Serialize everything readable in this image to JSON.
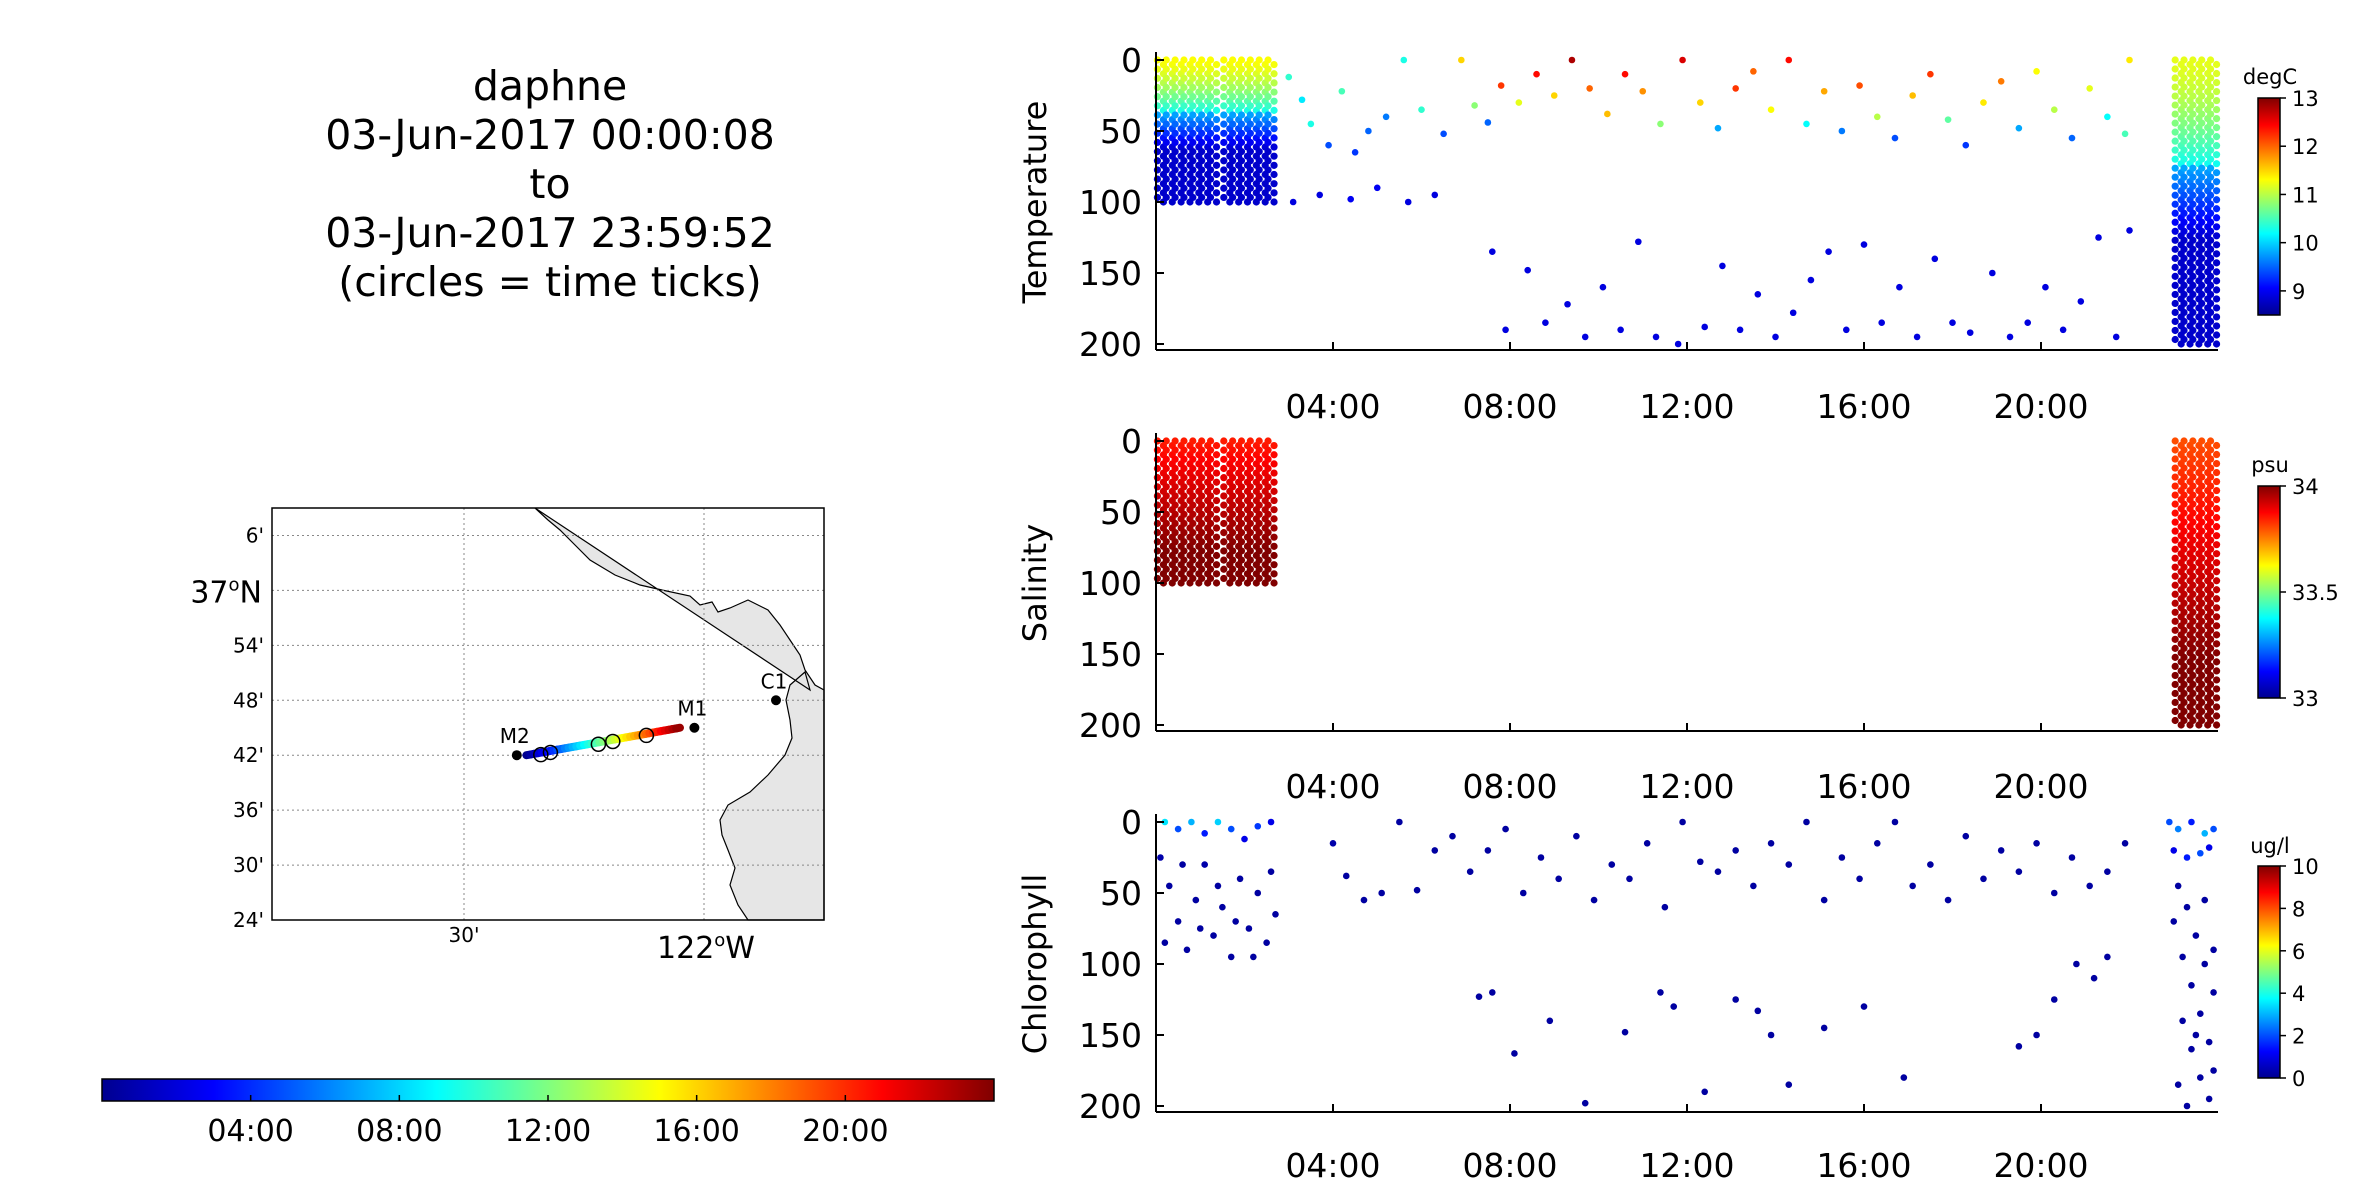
{
  "title": {
    "lines": [
      "daphne",
      "03-Jun-2017 00:00:08",
      "to",
      "03-Jun-2017 23:59:52",
      "(circles = time ticks)"
    ]
  },
  "colors": {
    "jet": [
      "#00008f",
      "#0000ff",
      "#0080ff",
      "#00ffff",
      "#80ff80",
      "#ffff00",
      "#ff8000",
      "#ff0000",
      "#800000"
    ],
    "land": "#e6e6e6",
    "grid": "#888888"
  },
  "map": {
    "lat_ticks": [
      "6'",
      "37°N",
      "54'",
      "48'",
      "42'",
      "36'",
      "30'",
      "24'"
    ],
    "lat_values": [
      37.1,
      37.0,
      36.9,
      36.8,
      36.7,
      36.6,
      36.5,
      36.4
    ],
    "lon_ticks": [
      "30'",
      "122°W"
    ],
    "lon_values": [
      -122.5,
      -122.0
    ],
    "lon_range": [
      -122.9,
      -121.75
    ],
    "lat_range": [
      36.4,
      37.15
    ],
    "stations": [
      {
        "name": "M1",
        "lon": -122.02,
        "lat": 36.75
      },
      {
        "name": "M2",
        "lon": -122.39,
        "lat": 36.7
      },
      {
        "name": "C1",
        "lon": -121.85,
        "lat": 36.8
      }
    ],
    "time_tick_circles": [
      {
        "lon": -122.34,
        "lat": 36.701
      },
      {
        "lon": -122.32,
        "lat": 36.705
      },
      {
        "lon": -122.22,
        "lat": 36.72
      },
      {
        "lon": -122.19,
        "lat": 36.725
      },
      {
        "lon": -122.12,
        "lat": 36.736
      }
    ]
  },
  "time_colorbar": {
    "ticks": [
      "04:00",
      "08:00",
      "12:00",
      "16:00",
      "20:00"
    ],
    "tick_hours": [
      4,
      8,
      12,
      16,
      20
    ],
    "range_hours": [
      0,
      24
    ]
  },
  "chart_data": [
    {
      "type": "scatter",
      "ylabel": "Temperature",
      "unit": "degC",
      "y_ticks": [
        "0",
        "50",
        "100",
        "150",
        "200"
      ],
      "ylim": [
        200,
        0
      ],
      "x_ticks": [
        "04:00",
        "08:00",
        "12:00",
        "16:00",
        "20:00"
      ],
      "xlim_hours": [
        0,
        24
      ],
      "colorbar_ticks": [
        "13",
        "12",
        "11",
        "10",
        "9"
      ],
      "clim": [
        8.5,
        13
      ],
      "series": [
        {
          "x": [
            0.1,
            0.3,
            0.5,
            0.7,
            0.9,
            1.1,
            1.3,
            1.6,
            1.8,
            2.0,
            2.2,
            2.4,
            2.6
          ],
          "y_top": 0,
          "y_bottom": 100,
          "color_top": 11.3,
          "color_bottom": 8.8
        },
        {
          "x": [
            23.1,
            23.3,
            23.5,
            23.7,
            23.9
          ],
          "y_top": 0,
          "y_bottom": 200,
          "color_top": 11.2,
          "color_bottom": 8.8
        }
      ],
      "points": [
        [
          3.0,
          12,
          10.4
        ],
        [
          3.3,
          28,
          10.1
        ],
        [
          3.5,
          45,
          10.3
        ],
        [
          3.9,
          60,
          9.4
        ],
        [
          4.2,
          22,
          10.5
        ],
        [
          4.5,
          65,
          9.3
        ],
        [
          4.8,
          50,
          9.5
        ],
        [
          5.2,
          40,
          9.6
        ],
        [
          5.6,
          0,
          10.3
        ],
        [
          6.0,
          35,
          10.4
        ],
        [
          6.5,
          52,
          9.4
        ],
        [
          6.9,
          0,
          11.5
        ],
        [
          7.2,
          32,
          10.8
        ],
        [
          7.5,
          44,
          9.5
        ],
        [
          7.8,
          18,
          12.2
        ],
        [
          8.2,
          30,
          11.2
        ],
        [
          8.6,
          10,
          12.4
        ],
        [
          9.0,
          25,
          11.5
        ],
        [
          9.4,
          0,
          12.8
        ],
        [
          9.8,
          20,
          12.0
        ],
        [
          10.2,
          38,
          11.6
        ],
        [
          10.6,
          10,
          12.4
        ],
        [
          11.0,
          22,
          11.8
        ],
        [
          11.4,
          45,
          10.8
        ],
        [
          11.9,
          0,
          12.6
        ],
        [
          12.3,
          30,
          11.5
        ],
        [
          12.7,
          48,
          9.8
        ],
        [
          13.1,
          20,
          12.2
        ],
        [
          13.5,
          8,
          12.0
        ],
        [
          13.9,
          35,
          11.3
        ],
        [
          14.3,
          0,
          12.4
        ],
        [
          14.7,
          45,
          10.2
        ],
        [
          15.1,
          22,
          11.7
        ],
        [
          15.5,
          50,
          9.6
        ],
        [
          15.9,
          18,
          12.1
        ],
        [
          16.3,
          40,
          11.0
        ],
        [
          16.7,
          55,
          9.4
        ],
        [
          17.1,
          25,
          11.6
        ],
        [
          17.5,
          10,
          12.2
        ],
        [
          17.9,
          42,
          10.6
        ],
        [
          18.3,
          60,
          9.3
        ],
        [
          18.7,
          30,
          11.4
        ],
        [
          19.1,
          15,
          11.9
        ],
        [
          19.5,
          48,
          9.8
        ],
        [
          19.9,
          8,
          11.3
        ],
        [
          20.3,
          35,
          11.0
        ],
        [
          20.7,
          55,
          9.5
        ],
        [
          21.1,
          20,
          11.2
        ],
        [
          21.5,
          40,
          10.2
        ],
        [
          21.9,
          52,
          10.5
        ],
        [
          22.0,
          0,
          11.4
        ],
        [
          3.1,
          100,
          8.9
        ],
        [
          3.7,
          95,
          8.9
        ],
        [
          4.4,
          98,
          9.0
        ],
        [
          5.0,
          90,
          9.0
        ],
        [
          5.7,
          100,
          8.9
        ],
        [
          6.3,
          95,
          8.9
        ],
        [
          7.6,
          135,
          8.9
        ],
        [
          7.9,
          190,
          8.9
        ],
        [
          8.4,
          148,
          8.9
        ],
        [
          8.8,
          185,
          8.9
        ],
        [
          9.3,
          172,
          8.9
        ],
        [
          9.7,
          195,
          8.9
        ],
        [
          10.1,
          160,
          8.9
        ],
        [
          10.5,
          190,
          8.9
        ],
        [
          10.9,
          128,
          8.9
        ],
        [
          11.3,
          195,
          8.9
        ],
        [
          11.8,
          200,
          8.9
        ],
        [
          12.4,
          188,
          8.9
        ],
        [
          12.8,
          145,
          8.9
        ],
        [
          13.2,
          190,
          8.9
        ],
        [
          13.6,
          165,
          8.9
        ],
        [
          14.0,
          195,
          8.9
        ],
        [
          14.4,
          178,
          8.9
        ],
        [
          14.8,
          155,
          8.9
        ],
        [
          15.2,
          135,
          8.9
        ],
        [
          15.6,
          190,
          8.9
        ],
        [
          16.0,
          130,
          8.9
        ],
        [
          16.4,
          185,
          8.9
        ],
        [
          16.8,
          160,
          8.9
        ],
        [
          17.2,
          195,
          8.9
        ],
        [
          17.6,
          140,
          8.9
        ],
        [
          18.0,
          185,
          8.9
        ],
        [
          18.4,
          192,
          8.9
        ],
        [
          18.9,
          150,
          8.9
        ],
        [
          19.3,
          195,
          8.9
        ],
        [
          19.7,
          185,
          8.9
        ],
        [
          20.1,
          160,
          8.9
        ],
        [
          20.5,
          190,
          8.9
        ],
        [
          20.9,
          170,
          8.9
        ],
        [
          21.3,
          125,
          8.9
        ],
        [
          21.7,
          195,
          8.9
        ],
        [
          22.0,
          120,
          8.9
        ]
      ]
    },
    {
      "type": "scatter",
      "ylabel": "Salinity",
      "unit": "psu",
      "y_ticks": [
        "0",
        "50",
        "100",
        "150",
        "200"
      ],
      "ylim": [
        200,
        0
      ],
      "x_ticks": [
        "04:00",
        "08:00",
        "12:00",
        "16:00",
        "20:00"
      ],
      "xlim_hours": [
        0,
        24
      ],
      "colorbar_ticks": [
        "34",
        "33.5",
        "33"
      ],
      "clim": [
        33,
        34
      ],
      "series": [
        {
          "x": [
            0.1,
            0.3,
            0.5,
            0.7,
            0.9,
            1.1,
            1.3,
            1.6,
            1.8,
            2.0,
            2.2,
            2.4,
            2.6
          ],
          "y_top": 0,
          "y_bottom": 100,
          "color_top": 33.85,
          "color_bottom": 34.0
        },
        {
          "x": [
            23.1,
            23.3,
            23.5,
            23.7,
            23.9
          ],
          "y_top": 0,
          "y_bottom": 200,
          "color_top": 33.8,
          "color_bottom": 34.0
        }
      ],
      "points": []
    },
    {
      "type": "scatter",
      "ylabel": "Chlorophyll",
      "unit": "ug/l",
      "y_ticks": [
        "0",
        "50",
        "100",
        "150",
        "200"
      ],
      "ylim": [
        200,
        0
      ],
      "x_ticks": [
        "04:00",
        "08:00",
        "12:00",
        "16:00",
        "20:00"
      ],
      "xlim_hours": [
        0,
        24
      ],
      "colorbar_ticks": [
        "10",
        "8",
        "6",
        "4",
        "2",
        "0"
      ],
      "clim": [
        0,
        10
      ],
      "series": [],
      "points": [
        [
          0.2,
          0,
          3.5
        ],
        [
          0.5,
          5,
          2.0
        ],
        [
          0.8,
          0,
          3.0
        ],
        [
          1.1,
          8,
          1.5
        ],
        [
          1.4,
          0,
          3.3
        ],
        [
          1.7,
          5,
          2.0
        ],
        [
          2.0,
          12,
          1.0
        ],
        [
          2.3,
          3,
          1.8
        ],
        [
          2.6,
          0,
          1.0
        ],
        [
          0.1,
          25,
          0.3
        ],
        [
          0.3,
          45,
          0.2
        ],
        [
          0.5,
          70,
          0.2
        ],
        [
          0.7,
          90,
          0.2
        ],
        [
          0.9,
          55,
          0.2
        ],
        [
          1.1,
          30,
          0.3
        ],
        [
          1.3,
          80,
          0.2
        ],
        [
          1.5,
          60,
          0.2
        ],
        [
          1.7,
          95,
          0.2
        ],
        [
          1.9,
          40,
          0.2
        ],
        [
          2.1,
          75,
          0.2
        ],
        [
          2.3,
          50,
          0.2
        ],
        [
          2.5,
          85,
          0.2
        ],
        [
          2.7,
          65,
          0.2
        ],
        [
          0.2,
          85,
          0.2
        ],
        [
          0.6,
          30,
          0.2
        ],
        [
          1.0,
          75,
          0.2
        ],
        [
          1.4,
          45,
          0.2
        ],
        [
          1.8,
          70,
          0.2
        ],
        [
          2.2,
          95,
          0.2
        ],
        [
          2.6,
          35,
          0.2
        ],
        [
          4.0,
          15,
          0.3
        ],
        [
          4.3,
          38,
          0.2
        ],
        [
          4.7,
          55,
          0.2
        ],
        [
          5.1,
          50,
          0.2
        ],
        [
          5.5,
          0,
          0.2
        ],
        [
          5.9,
          48,
          0.2
        ],
        [
          6.3,
          20,
          0.2
        ],
        [
          6.7,
          10,
          0.2
        ],
        [
          7.1,
          35,
          0.2
        ],
        [
          7.5,
          20,
          0.2
        ],
        [
          7.9,
          5,
          0.2
        ],
        [
          8.3,
          50,
          0.2
        ],
        [
          8.7,
          25,
          0.2
        ],
        [
          9.1,
          40,
          0.2
        ],
        [
          9.5,
          10,
          0.2
        ],
        [
          9.9,
          55,
          0.2
        ],
        [
          10.3,
          30,
          0.2
        ],
        [
          10.7,
          40,
          0.2
        ],
        [
          11.1,
          15,
          0.2
        ],
        [
          11.5,
          60,
          0.2
        ],
        [
          11.9,
          0,
          0.2
        ],
        [
          12.3,
          28,
          0.2
        ],
        [
          12.7,
          35,
          0.2
        ],
        [
          13.1,
          20,
          0.2
        ],
        [
          13.5,
          45,
          0.2
        ],
        [
          13.9,
          15,
          0.2
        ],
        [
          14.3,
          30,
          0.2
        ],
        [
          14.7,
          0,
          0.2
        ],
        [
          15.1,
          55,
          0.2
        ],
        [
          15.5,
          25,
          0.2
        ],
        [
          15.9,
          40,
          0.2
        ],
        [
          16.3,
          15,
          0.2
        ],
        [
          16.7,
          0,
          0.2
        ],
        [
          17.1,
          45,
          0.2
        ],
        [
          17.5,
          30,
          0.2
        ],
        [
          17.9,
          55,
          0.2
        ],
        [
          18.3,
          10,
          0.2
        ],
        [
          18.7,
          40,
          0.2
        ],
        [
          19.1,
          20,
          0.2
        ],
        [
          19.5,
          35,
          0.2
        ],
        [
          19.9,
          15,
          0.2
        ],
        [
          20.3,
          50,
          0.2
        ],
        [
          20.7,
          25,
          0.2
        ],
        [
          21.1,
          45,
          0.2
        ],
        [
          21.5,
          35,
          0.2
        ],
        [
          21.9,
          15,
          0.2
        ],
        [
          7.3,
          123,
          0.2
        ],
        [
          7.6,
          120,
          0.2
        ],
        [
          8.1,
          163,
          0.2
        ],
        [
          8.9,
          140,
          0.2
        ],
        [
          9.7,
          198,
          0.2
        ],
        [
          10.6,
          148,
          0.2
        ],
        [
          11.4,
          120,
          0.2
        ],
        [
          11.7,
          130,
          0.2
        ],
        [
          12.4,
          190,
          0.2
        ],
        [
          13.1,
          125,
          0.2
        ],
        [
          13.6,
          133,
          0.2
        ],
        [
          13.9,
          150,
          0.2
        ],
        [
          14.3,
          185,
          0.2
        ],
        [
          15.1,
          145,
          0.2
        ],
        [
          16.0,
          130,
          0.2
        ],
        [
          16.9,
          180,
          0.2
        ],
        [
          19.5,
          158,
          0.2
        ],
        [
          19.9,
          150,
          0.2
        ],
        [
          20.3,
          125,
          0.2
        ],
        [
          20.8,
          100,
          0.2
        ],
        [
          21.2,
          110,
          0.2
        ],
        [
          21.5,
          95,
          0.2
        ],
        [
          22.9,
          0,
          2.0
        ],
        [
          23.1,
          5,
          2.5
        ],
        [
          23.4,
          0,
          1.5
        ],
        [
          23.7,
          8,
          3.0
        ],
        [
          23.9,
          5,
          2.0
        ],
        [
          23.0,
          20,
          1.0
        ],
        [
          23.3,
          25,
          1.5
        ],
        [
          23.6,
          22,
          2.0
        ],
        [
          23.8,
          18,
          1.0
        ],
        [
          23.1,
          45,
          0.2
        ],
        [
          23.3,
          60,
          0.2
        ],
        [
          23.5,
          80,
          0.2
        ],
        [
          23.7,
          100,
          0.2
        ],
        [
          23.9,
          120,
          0.2
        ],
        [
          23.2,
          140,
          0.2
        ],
        [
          23.4,
          160,
          0.2
        ],
        [
          23.6,
          180,
          0.2
        ],
        [
          23.8,
          195,
          0.2
        ],
        [
          23.0,
          70,
          0.2
        ],
        [
          23.2,
          95,
          0.2
        ],
        [
          23.4,
          115,
          0.2
        ],
        [
          23.6,
          135,
          0.2
        ],
        [
          23.8,
          155,
          0.2
        ],
        [
          23.9,
          175,
          0.2
        ],
        [
          23.1,
          185,
          0.2
        ],
        [
          23.3,
          200,
          0.2
        ],
        [
          23.5,
          150,
          0.2
        ],
        [
          23.7,
          55,
          0.2
        ],
        [
          23.9,
          90,
          0.2
        ]
      ]
    }
  ]
}
